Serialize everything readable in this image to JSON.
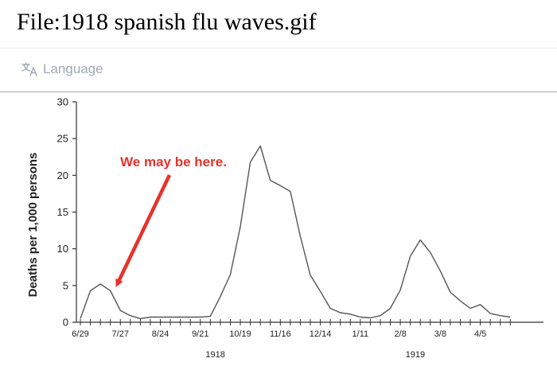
{
  "page": {
    "title": "File:1918 spanish flu waves.gif"
  },
  "language_bar": {
    "label": "Language",
    "icon": "translate-icon"
  },
  "chart_data": {
    "type": "line",
    "title": "",
    "xlabel": "",
    "ylabel": "Deaths per 1,000 persons",
    "ylim": [
      0,
      30
    ],
    "yticks": [
      0,
      5,
      10,
      15,
      20,
      25,
      30
    ],
    "x_unit": "weeks since 6/29/1918",
    "xlim": [
      0,
      46
    ],
    "xtick_labels": [
      {
        "week": 0,
        "label": "6/29"
      },
      {
        "week": 4,
        "label": "7/27"
      },
      {
        "week": 8,
        "label": "8/24"
      },
      {
        "week": 12,
        "label": "9/21"
      },
      {
        "week": 16,
        "label": "10/19"
      },
      {
        "week": 20,
        "label": "11/16"
      },
      {
        "week": 24,
        "label": "12/14"
      },
      {
        "week": 28,
        "label": "1/11"
      },
      {
        "week": 32,
        "label": "2/8"
      },
      {
        "week": 36,
        "label": "3/8"
      },
      {
        "week": 40,
        "label": "4/5"
      }
    ],
    "year_labels": [
      {
        "week": 13.5,
        "label": "1918"
      },
      {
        "week": 33.5,
        "label": "1919"
      }
    ],
    "grid": false,
    "color": "#555555",
    "series": [
      {
        "name": "",
        "x": [
          0,
          1,
          2,
          3,
          4,
          5,
          6,
          7,
          8,
          9,
          10,
          11,
          12,
          13,
          14,
          15,
          16,
          17,
          18,
          19,
          20,
          21,
          22,
          23,
          24,
          25,
          26,
          27,
          28,
          29,
          30,
          31,
          32,
          33,
          34,
          35,
          36,
          37,
          38,
          39,
          40,
          41,
          42,
          43
        ],
        "values": [
          0.5,
          4.3,
          5.2,
          4.3,
          1.6,
          0.9,
          0.5,
          0.7,
          0.7,
          0.7,
          0.7,
          0.7,
          0.7,
          0.8,
          3.5,
          6.5,
          13,
          21.8,
          24,
          19.3,
          18.6,
          17.8,
          11.7,
          6.4,
          4.2,
          1.9,
          1.3,
          1.1,
          0.7,
          0.6,
          0.9,
          1.9,
          4.4,
          9,
          11.2,
          9.5,
          7,
          4.1,
          2.9,
          1.9,
          2.4,
          1.2,
          0.9,
          0.7
        ]
      }
    ],
    "annotation": {
      "text": "We may be here.",
      "color": "#e8322a",
      "points_to_week": 3.4,
      "points_to_value": 4.4
    }
  }
}
